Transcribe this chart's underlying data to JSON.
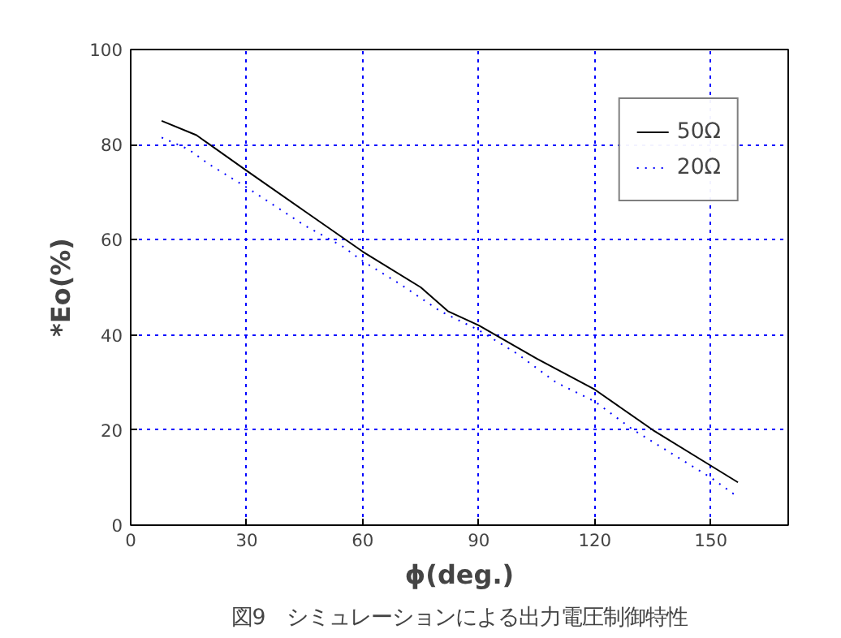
{
  "chart_data": {
    "type": "line",
    "xlabel": "ϕ(deg.)",
    "ylabel": "*Eo(%)",
    "annotations": [
      "図9　シミュレーションによる出力電圧制御特性"
    ],
    "xlim": [
      0,
      170
    ],
    "ylim": [
      0,
      100
    ],
    "xticks": [
      0,
      30,
      60,
      90,
      120,
      150
    ],
    "yticks": [
      0,
      20,
      40,
      60,
      80,
      100
    ],
    "grid": true,
    "legend": "top right",
    "marker": "none",
    "series": [
      {
        "name": "50Ω",
        "color": "#000000",
        "line_style": "solid",
        "x": [
          8,
          17,
          30,
          45,
          60,
          75,
          82,
          90,
          105,
          120,
          135,
          150,
          157
        ],
        "values": [
          85,
          82,
          74.5,
          66,
          57.5,
          50,
          45,
          42,
          35,
          28.5,
          20,
          12.5,
          9
        ]
      },
      {
        "name": "20Ω",
        "color": "#0000ff",
        "line_style": "dotted",
        "x": [
          8,
          15,
          20,
          30,
          45,
          55,
          60,
          70,
          80,
          90,
          100,
          110,
          120,
          130,
          140,
          150,
          156
        ],
        "values": [
          81.5,
          79,
          76,
          71,
          63,
          58.5,
          55.5,
          50.5,
          45,
          41,
          36,
          30,
          26,
          20,
          15,
          10,
          6.5
        ]
      }
    ]
  }
}
